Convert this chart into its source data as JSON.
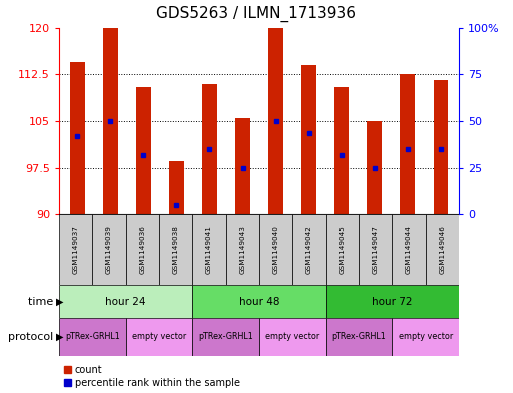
{
  "title": "GDS5263 / ILMN_1713936",
  "samples": [
    "GSM1149037",
    "GSM1149039",
    "GSM1149036",
    "GSM1149038",
    "GSM1149041",
    "GSM1149043",
    "GSM1149040",
    "GSM1149042",
    "GSM1149045",
    "GSM1149047",
    "GSM1149044",
    "GSM1149046"
  ],
  "bar_tops": [
    114.5,
    120,
    110.5,
    98.5,
    111,
    105.5,
    120,
    114,
    110.5,
    105,
    112.5,
    111.5
  ],
  "bar_bottoms": [
    90,
    90,
    90,
    90,
    90,
    90,
    90,
    90,
    90,
    90,
    90,
    90
  ],
  "blue_marker_y": [
    102.5,
    105,
    99.5,
    91.5,
    100.5,
    97.5,
    105,
    103,
    99.5,
    97.5,
    100.5,
    100.5
  ],
  "ylim_left": [
    90,
    120
  ],
  "ylim_right": [
    0,
    100
  ],
  "yticks_left": [
    90,
    97.5,
    105,
    112.5,
    120
  ],
  "ytick_labels_left": [
    "90",
    "97.5",
    "105",
    "112.5",
    "120"
  ],
  "yticks_right": [
    0,
    25,
    50,
    75,
    100
  ],
  "ytick_labels_right": [
    "0",
    "25",
    "50",
    "75",
    "100%"
  ],
  "bar_color": "#cc2200",
  "blue_marker_color": "#0000cc",
  "time_colors": [
    "#bbeebb",
    "#66dd66",
    "#33bb33"
  ],
  "time_groups": [
    {
      "label": "hour 24",
      "start": 0,
      "end": 4
    },
    {
      "label": "hour 48",
      "start": 4,
      "end": 8
    },
    {
      "label": "hour 72",
      "start": 8,
      "end": 12
    }
  ],
  "protocol_groups": [
    {
      "label": "pTRex-GRHL1",
      "start": 0,
      "end": 2,
      "color": "#cc77cc"
    },
    {
      "label": "empty vector",
      "start": 2,
      "end": 4,
      "color": "#ee99ee"
    },
    {
      "label": "pTRex-GRHL1",
      "start": 4,
      "end": 6,
      "color": "#cc77cc"
    },
    {
      "label": "empty vector",
      "start": 6,
      "end": 8,
      "color": "#ee99ee"
    },
    {
      "label": "pTRex-GRHL1",
      "start": 8,
      "end": 10,
      "color": "#cc77cc"
    },
    {
      "label": "empty vector",
      "start": 10,
      "end": 12,
      "color": "#ee99ee"
    }
  ],
  "sample_row_color": "#cccccc",
  "time_label": "time",
  "protocol_label": "protocol",
  "legend_count_label": "count",
  "legend_pct_label": "percentile rank within the sample",
  "background_color": "#ffffff",
  "title_fontsize": 11,
  "tick_fontsize": 8
}
